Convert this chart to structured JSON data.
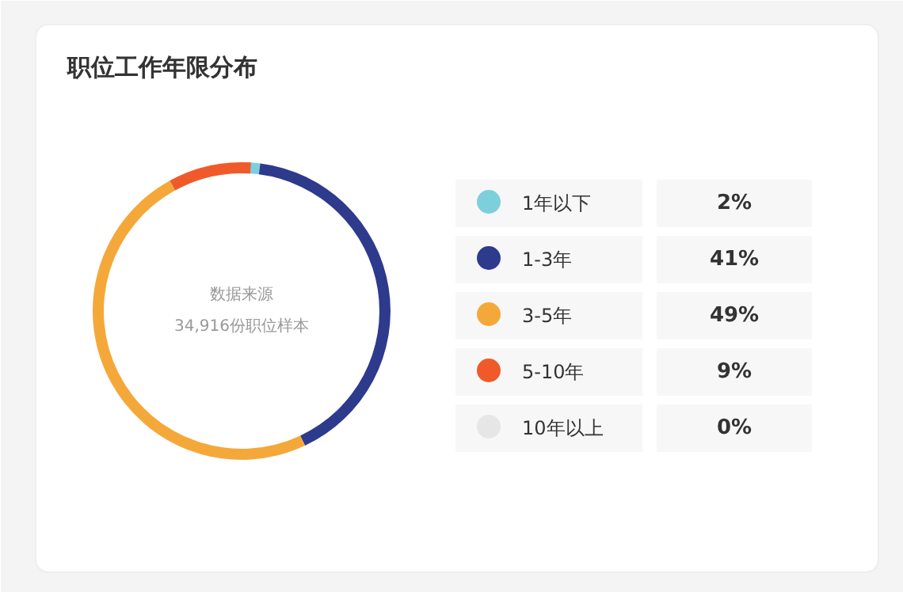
{
  "chart_data": {
    "type": "donut",
    "title": "职位工作年限分布",
    "categories": [
      "1年以下",
      "1-3年",
      "3-5年",
      "5-10年",
      "10年以上"
    ],
    "values": [
      2,
      41,
      49,
      9,
      0
    ],
    "colors": [
      "#7ecfdc",
      "#2e3a8c",
      "#f5a83a",
      "#f05a2a",
      "#e6e6e6"
    ],
    "value_labels": [
      "2%",
      "41%",
      "49%",
      "9%",
      "0%"
    ],
    "annotations": [
      "数据来源",
      "34,916份职位样本"
    ],
    "legend": "right"
  }
}
